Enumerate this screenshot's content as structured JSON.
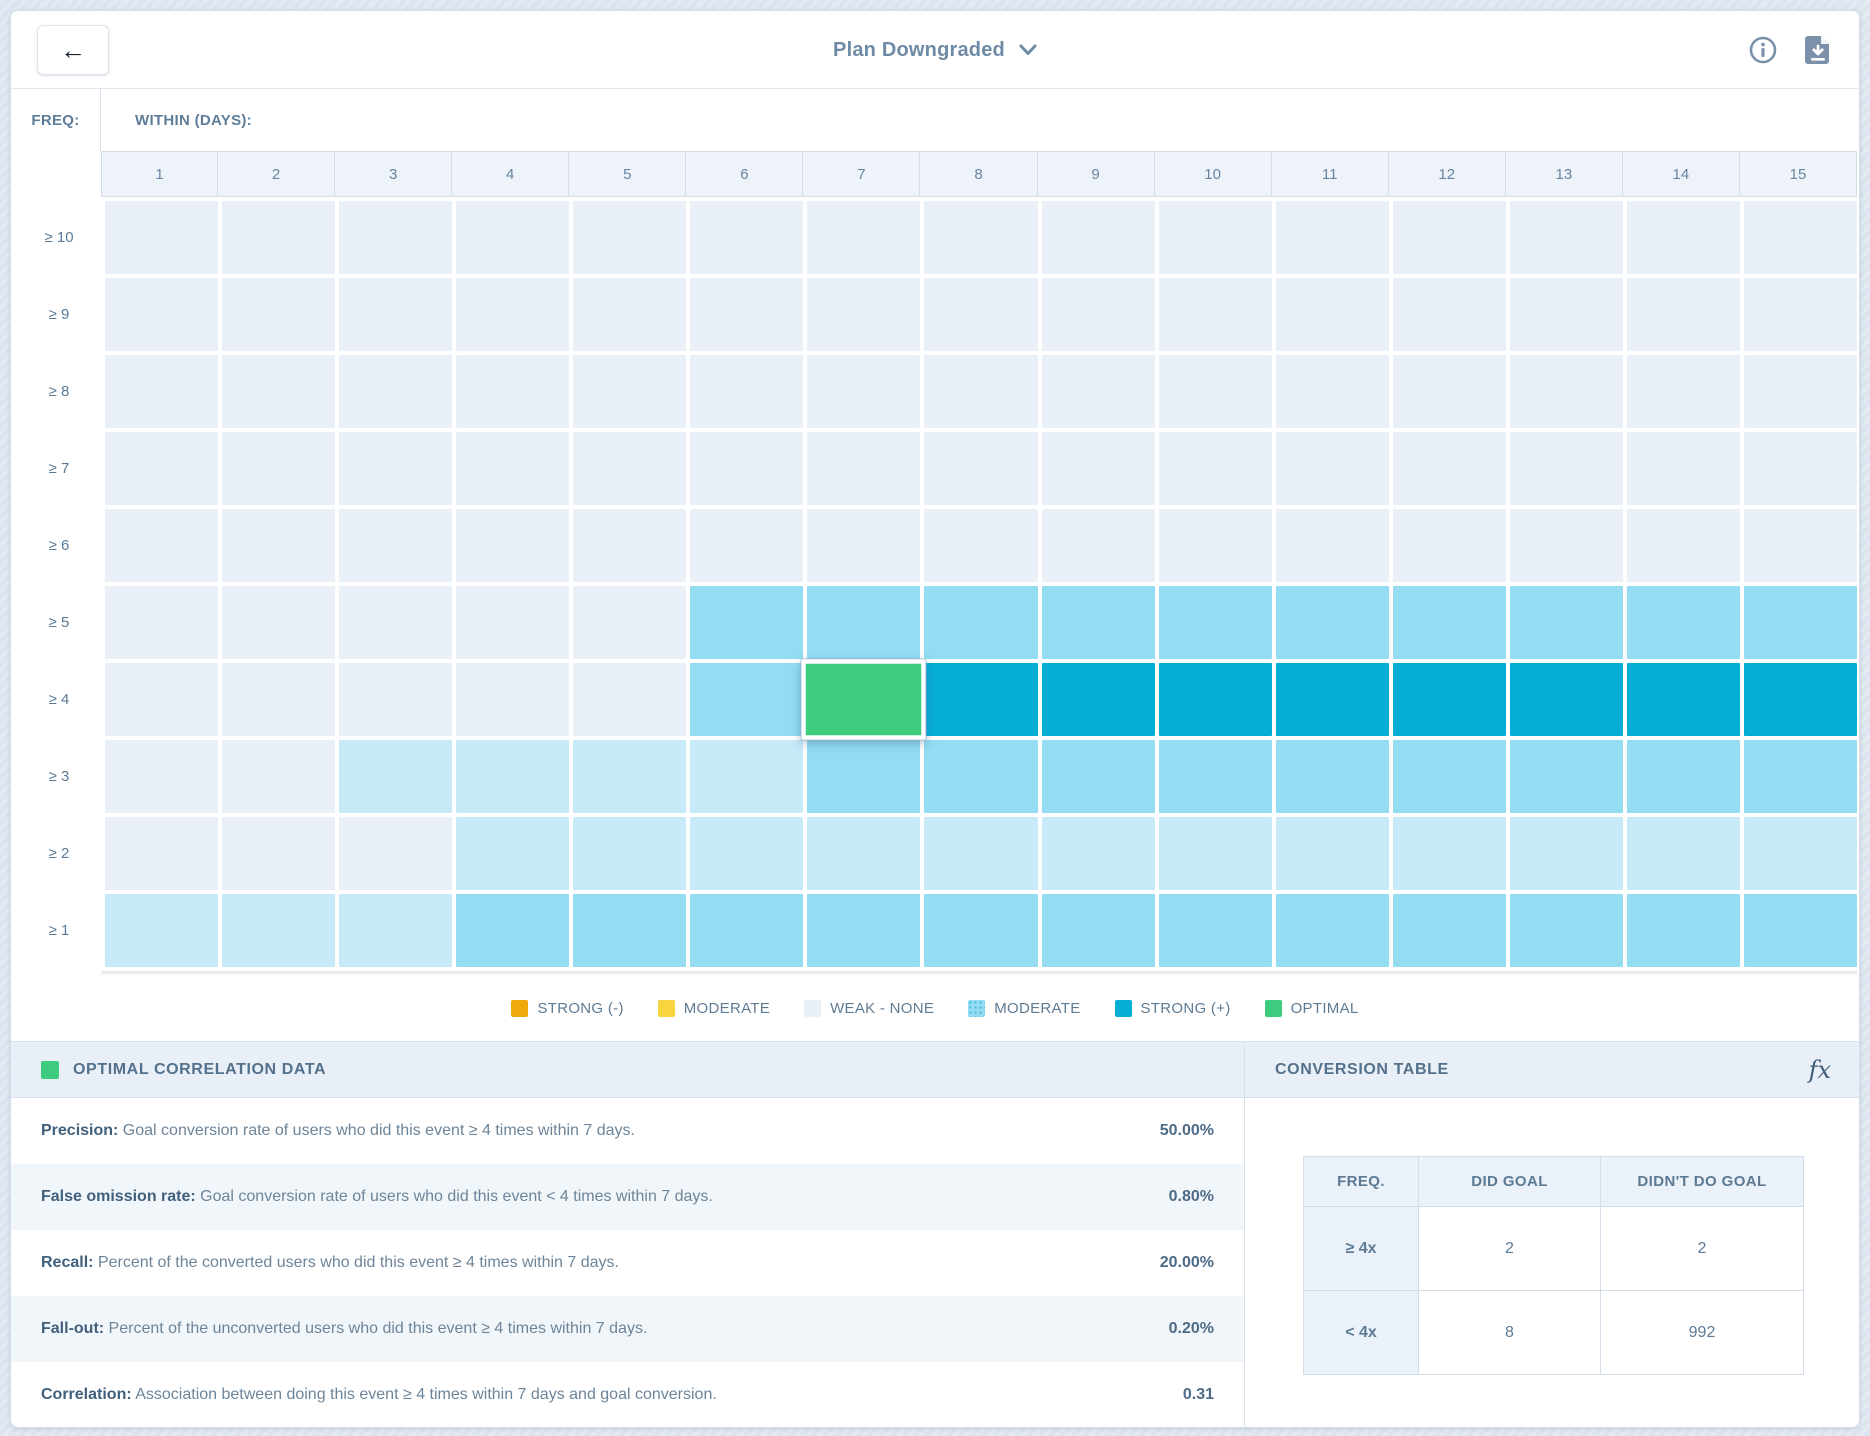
{
  "header": {
    "title": "Plan Downgraded",
    "back_icon": "left-arrow",
    "icons": [
      "info",
      "download-report"
    ]
  },
  "heatmap": {
    "freq_label": "FREQ:",
    "within_label": "WITHIN (DAYS):",
    "columns": [
      "1",
      "2",
      "3",
      "4",
      "5",
      "6",
      "7",
      "8",
      "9",
      "10",
      "11",
      "12",
      "13",
      "14",
      "15"
    ],
    "rows": [
      {
        "label": "≥ 10",
        "cells": [
          "w",
          "w",
          "w",
          "w",
          "w",
          "w",
          "w",
          "w",
          "w",
          "w",
          "w",
          "w",
          "w",
          "w",
          "w"
        ]
      },
      {
        "label": "≥ 9",
        "cells": [
          "w",
          "w",
          "w",
          "w",
          "w",
          "w",
          "w",
          "w",
          "w",
          "w",
          "w",
          "w",
          "w",
          "w",
          "w"
        ]
      },
      {
        "label": "≥ 8",
        "cells": [
          "w",
          "w",
          "w",
          "w",
          "w",
          "w",
          "w",
          "w",
          "w",
          "w",
          "w",
          "w",
          "w",
          "w",
          "w"
        ]
      },
      {
        "label": "≥ 7",
        "cells": [
          "w",
          "w",
          "w",
          "w",
          "w",
          "w",
          "w",
          "w",
          "w",
          "w",
          "w",
          "w",
          "w",
          "w",
          "w"
        ]
      },
      {
        "label": "≥ 6",
        "cells": [
          "w",
          "w",
          "w",
          "w",
          "w",
          "w",
          "w",
          "w",
          "w",
          "w",
          "w",
          "w",
          "w",
          "w",
          "w"
        ]
      },
      {
        "label": "≥ 5",
        "cells": [
          "w",
          "w",
          "w",
          "w",
          "w",
          "m",
          "m",
          "m",
          "m",
          "m",
          "m",
          "m",
          "m",
          "m",
          "m"
        ]
      },
      {
        "label": "≥ 4",
        "cells": [
          "w",
          "w",
          "w",
          "w",
          "w",
          "m",
          "o",
          "s",
          "s",
          "s",
          "s",
          "s",
          "s",
          "s",
          "s"
        ]
      },
      {
        "label": "≥ 3",
        "cells": [
          "w",
          "w",
          "l",
          "l",
          "l",
          "l",
          "m",
          "m",
          "m",
          "m",
          "m",
          "m",
          "m",
          "m",
          "m"
        ]
      },
      {
        "label": "≥ 2",
        "cells": [
          "w",
          "w",
          "w",
          "l",
          "l",
          "l",
          "l",
          "l",
          "l",
          "l",
          "l",
          "l",
          "l",
          "l",
          "l"
        ]
      },
      {
        "label": "≥ 1",
        "cells": [
          "l",
          "l",
          "l",
          "m",
          "m",
          "m",
          "m",
          "m",
          "m",
          "m",
          "m",
          "m",
          "m",
          "m",
          "m"
        ]
      }
    ],
    "cell_colors": {
      "w": "#e9f0f8",
      "l": "#c7eaf8",
      "m": "#93dcf2",
      "s": "#05aed5",
      "o": "#3dcb7e"
    },
    "optimal_cell": {
      "row": "≥ 4",
      "column": "7"
    }
  },
  "legend": {
    "items": [
      {
        "label": "STRONG (-)",
        "color": "#efaa0e",
        "pattern": false
      },
      {
        "label": "MODERATE",
        "color": "#f8d43f",
        "pattern": false
      },
      {
        "label": "WEAK - NONE",
        "color": "#e9f0f8",
        "pattern": false
      },
      {
        "label": "MODERATE",
        "color": "#93dcf2",
        "pattern": true
      },
      {
        "label": "STRONG (+)",
        "color": "#05aed5",
        "pattern": false
      },
      {
        "label": "OPTIMAL",
        "color": "#3dcb7e",
        "pattern": false
      }
    ]
  },
  "optimal_panel": {
    "title": "OPTIMAL CORRELATION DATA",
    "swatch_color": "#3dcb7e",
    "metrics": [
      {
        "label": "Precision:",
        "description": "Goal conversion rate of users who did this event ≥ 4 times within 7 days.",
        "value": "50.00%"
      },
      {
        "label": "False omission rate:",
        "description": "Goal conversion rate of users who did this event < 4 times within 7 days.",
        "value": "0.80%"
      },
      {
        "label": "Recall:",
        "description": "Percent of the converted users who did this event ≥ 4 times within 7 days.",
        "value": "20.00%"
      },
      {
        "label": "Fall-out:",
        "description": "Percent of the unconverted users who did this event ≥ 4 times within 7 days.",
        "value": "0.20%"
      },
      {
        "label": "Correlation:",
        "description": "Association between doing this event ≥ 4 times within 7 days and goal conversion.",
        "value": "0.31"
      }
    ]
  },
  "conversion_panel": {
    "title": "CONVERSION TABLE",
    "icon": "fx",
    "table": {
      "headers": [
        "FREQ.",
        "DID GOAL",
        "DIDN'T DO GOAL"
      ],
      "rows": [
        {
          "freq": "≥ 4x",
          "did_goal": "2",
          "didnt_do_goal": "2"
        },
        {
          "freq": "< 4x",
          "did_goal": "8",
          "didnt_do_goal": "992"
        }
      ]
    }
  }
}
